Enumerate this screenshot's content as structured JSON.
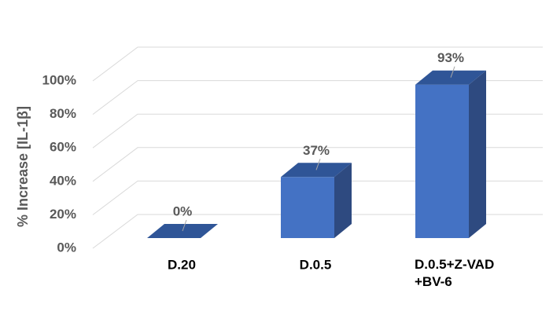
{
  "chart_data": {
    "type": "bar3d",
    "y_label": "% Increase [IL-1β]",
    "categories": [
      "D.20",
      "D.0.5",
      "D.0.5+Z-VAD\n+BV-6"
    ],
    "values": [
      0,
      37,
      93
    ],
    "value_labels": [
      "0%",
      "37%",
      "93%"
    ],
    "color": "#4472c4",
    "ylim": [
      0,
      100
    ],
    "yticks": [
      {
        "value": 0,
        "label": "0%"
      },
      {
        "value": 20,
        "label": "20%"
      },
      {
        "value": 40,
        "label": "40%"
      },
      {
        "value": 60,
        "label": "60%"
      },
      {
        "value": 80,
        "label": "80%"
      },
      {
        "value": 100,
        "label": "100%"
      }
    ],
    "grid": true
  }
}
